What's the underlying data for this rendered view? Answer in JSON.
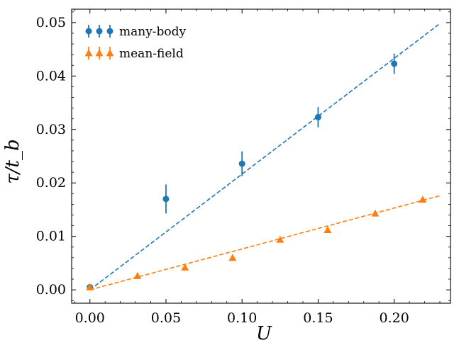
{
  "chart_data": {
    "type": "scatter",
    "xlabel": "U",
    "ylabel": "τ/t_b",
    "xlim": [
      -0.012,
      0.237
    ],
    "ylim": [
      -0.0025,
      0.0525
    ],
    "xticks": [
      "0.00",
      "0.05",
      "0.10",
      "0.15",
      "0.20"
    ],
    "xtick_values": [
      0.0,
      0.05,
      0.1,
      0.15,
      0.2
    ],
    "yticks": [
      "0.00",
      "0.01",
      "0.02",
      "0.03",
      "0.04",
      "0.05"
    ],
    "ytick_values": [
      0.0,
      0.01,
      0.02,
      0.03,
      0.04,
      0.05
    ],
    "grid": false,
    "legend_position": "top-left",
    "series": [
      {
        "name": "many-body",
        "color": "#1f77b4",
        "marker": "circle",
        "x": [
          0.0,
          0.05,
          0.1,
          0.15,
          0.2
        ],
        "y": [
          0.0005,
          0.017,
          0.0236,
          0.0323,
          0.0423
        ],
        "yerr": [
          0.0004,
          0.0027,
          0.0023,
          0.0019,
          0.0019
        ],
        "fit_line": {
          "x": [
            0.0,
            0.23
          ],
          "y": [
            0.0,
            0.0498
          ]
        }
      },
      {
        "name": "mean-field",
        "color": "#ff7f0e",
        "marker": "triangle",
        "x": [
          0.0,
          0.03125,
          0.0625,
          0.09375,
          0.125,
          0.15625,
          0.1875,
          0.21875
        ],
        "y": [
          0.0005,
          0.0026,
          0.0042,
          0.006,
          0.0094,
          0.0112,
          0.0143,
          0.0169
        ],
        "fit_line": {
          "x": [
            0.0,
            0.23
          ],
          "y": [
            0.0,
            0.0176
          ]
        }
      }
    ]
  }
}
